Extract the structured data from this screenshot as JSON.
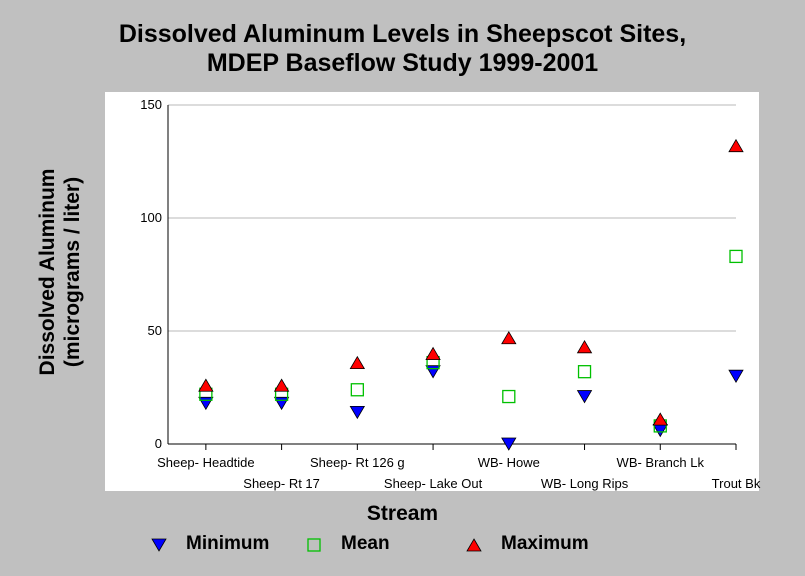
{
  "chart_data": {
    "type": "scatter",
    "title_lines": [
      "Dissolved Aluminum Levels in Sheepscot Sites,",
      "MDEP Baseflow Study 1999-2001"
    ],
    "xlabel": "Stream",
    "ylabel_lines": [
      "Dissolved Aluminum",
      "(micrograms / liter)"
    ],
    "ylim": [
      0,
      150
    ],
    "yticks": [
      0,
      50,
      100,
      150
    ],
    "grid": true,
    "legend_position": "bottom",
    "categories": [
      "Sheep- Headtide",
      "Sheep- Rt 17",
      "Sheep- Rt 126 g",
      "Sheep- Lake Out",
      "WB- Howe",
      "WB- Long Rips",
      "WB- Branch Lk",
      "Trout Bk"
    ],
    "series": [
      {
        "name": "Minimum",
        "marker": "triangle-down",
        "color": "#0000ff",
        "values": [
          18,
          18,
          14,
          32,
          0,
          21,
          6,
          30
        ]
      },
      {
        "name": "Mean",
        "marker": "square-open",
        "color": "#00c000",
        "values": [
          22,
          22,
          24,
          36,
          21,
          32,
          8,
          83
        ]
      },
      {
        "name": "Maximum",
        "marker": "triangle-up",
        "color": "#ff0000",
        "values": [
          26,
          26,
          36,
          40,
          47,
          43,
          11,
          132
        ]
      }
    ]
  }
}
